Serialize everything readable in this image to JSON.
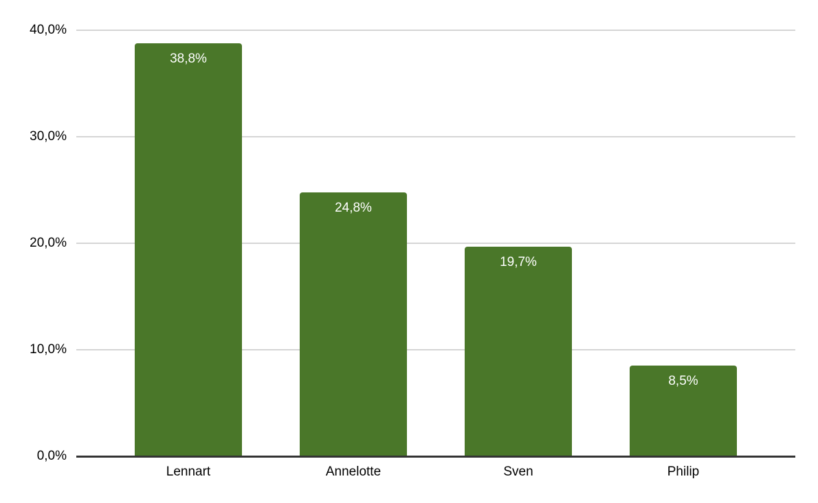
{
  "chart_data": {
    "type": "bar",
    "categories": [
      "Lennart",
      "Annelotte",
      "Sven",
      "Philip"
    ],
    "values": [
      38.8,
      24.8,
      19.7,
      8.5
    ],
    "value_labels": [
      "38,8%",
      "24,8%",
      "19,7%",
      "8,5%"
    ],
    "y_ticks": [
      {
        "value": 40,
        "label": "40,0%"
      },
      {
        "value": 30,
        "label": "30,0%"
      },
      {
        "value": 20,
        "label": "20,0%"
      },
      {
        "value": 10,
        "label": "10,0%"
      },
      {
        "value": 0,
        "label": "0,0%"
      }
    ],
    "ylim": [
      0,
      40
    ],
    "grid": true,
    "legend": "none",
    "decimal_separator": ",",
    "colors": {
      "bar": "#4a7729",
      "bar_label": "#ffffff",
      "gridline": "#d5d5d5",
      "axis_line": "#333333",
      "tick_text": "#000000",
      "background": "#ffffff"
    }
  }
}
